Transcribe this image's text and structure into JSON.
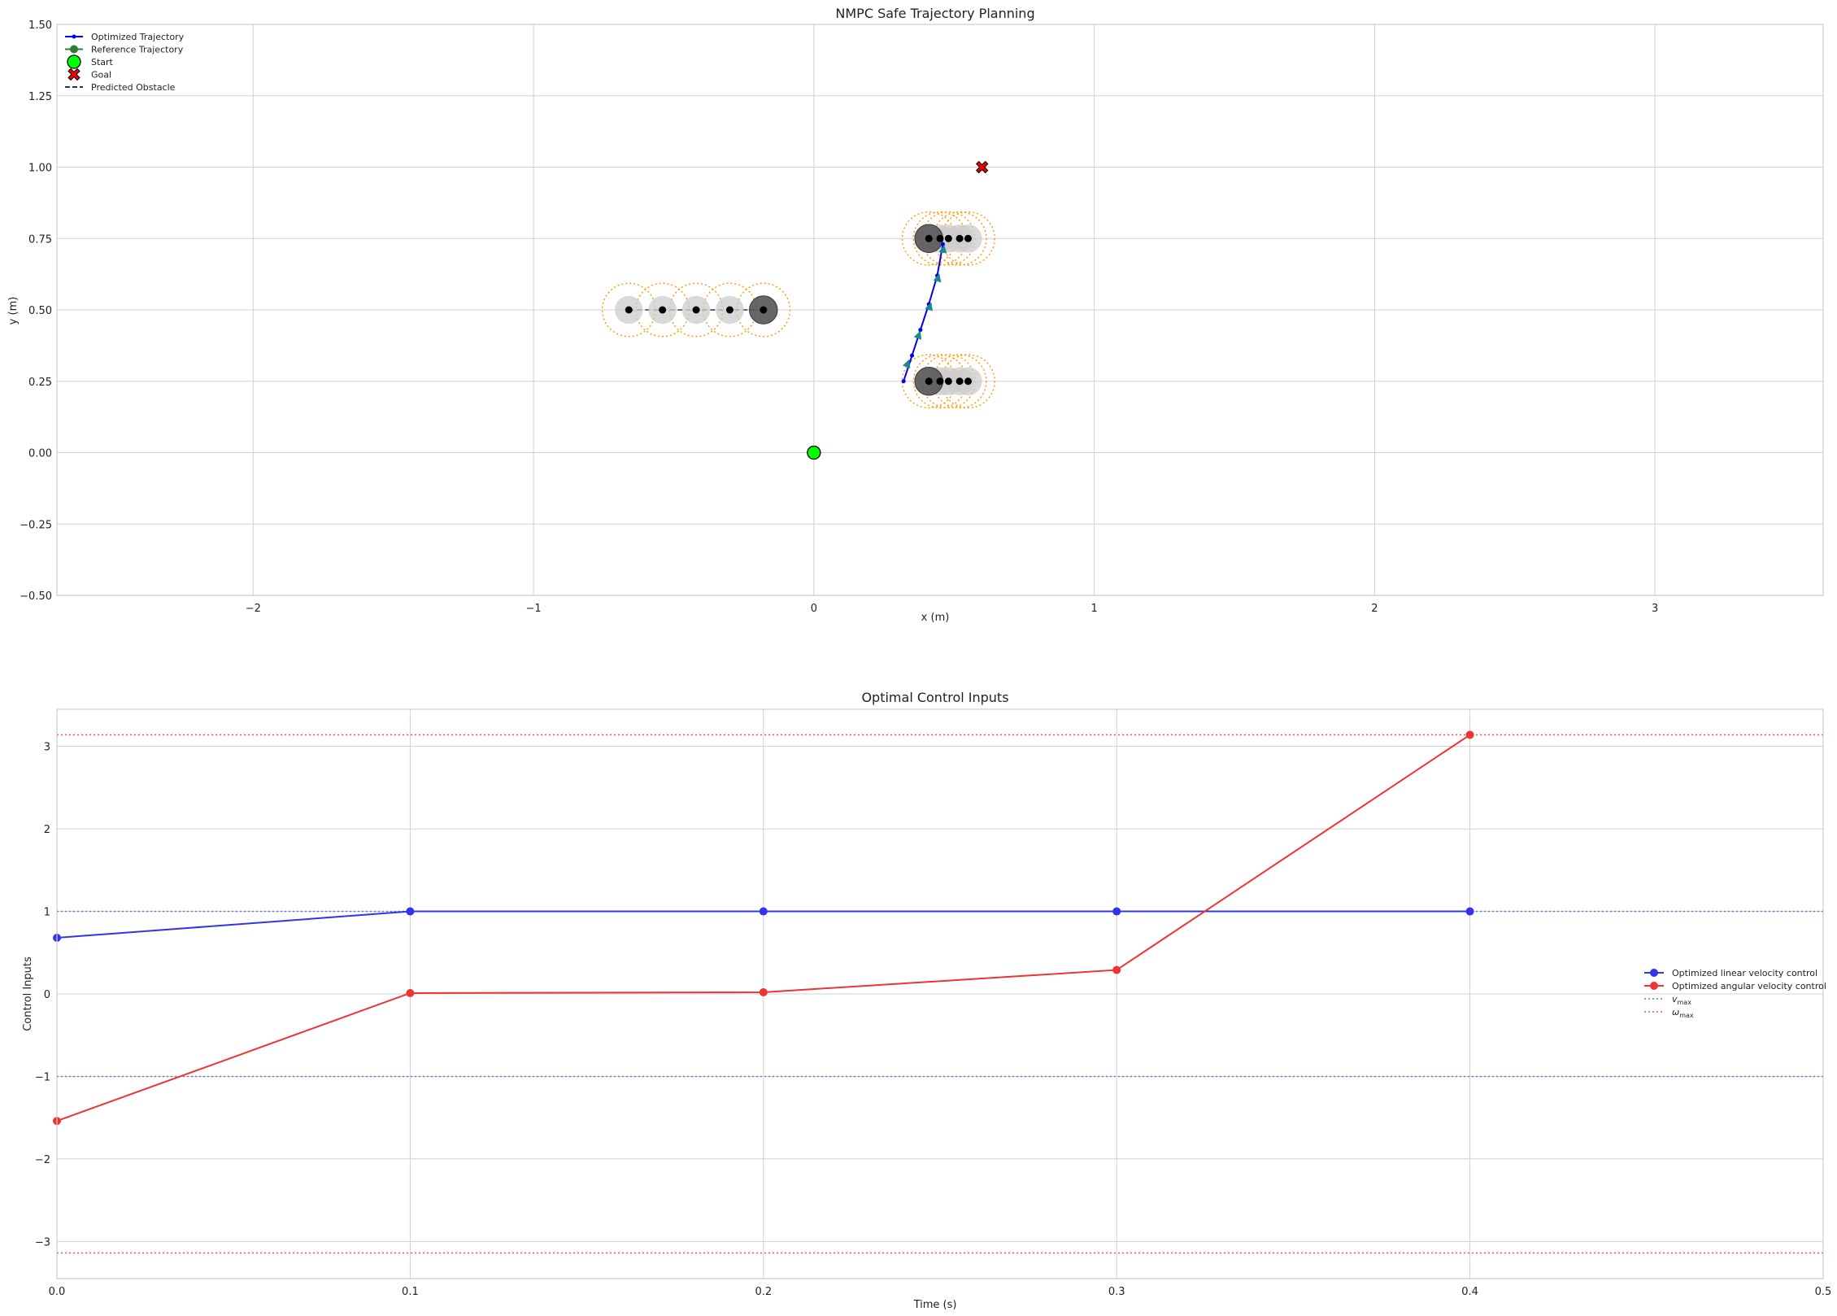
{
  "chart_data": [
    {
      "type": "scatter",
      "title": "NMPC Safe Trajectory Planning",
      "xlabel": "x (m)",
      "ylabel": "y (m)",
      "xlim": [
        -2.7,
        3.6
      ],
      "ylim": [
        -0.5,
        1.5
      ],
      "x_ticks": [
        -2,
        -1,
        0,
        1,
        2,
        3
      ],
      "x_tick_labels": [
        "−2",
        "−1",
        "0",
        "1",
        "2",
        "3"
      ],
      "y_ticks": [
        -0.5,
        -0.25,
        0,
        0.25,
        0.5,
        0.75,
        1.0,
        1.25,
        1.5
      ],
      "y_tick_labels": [
        "−0.50",
        "−0.25",
        "0.00",
        "0.25",
        "0.50",
        "0.75",
        "1.00",
        "1.25",
        "1.50"
      ],
      "grid": true,
      "legend_position": "top-left",
      "legend": [
        {
          "label": "Optimized Trajectory",
          "style": "line-dot",
          "color": "#0000ee"
        },
        {
          "label": "Reference Trajectory",
          "style": "line-circle",
          "color": "#2e7d32"
        },
        {
          "label": "Start",
          "style": "big-circle",
          "color": "#00ff00"
        },
        {
          "label": "Goal",
          "style": "x-marker",
          "color": "#ee0000"
        },
        {
          "label": "Predicted Obstacle",
          "style": "dashed",
          "color": "#333333"
        }
      ],
      "start": {
        "x": 0.0,
        "y": 0.0,
        "color": "#00ff00"
      },
      "goal": {
        "x": 0.6,
        "y": 1.0,
        "color": "#ee0000"
      },
      "optimized_trajectory": {
        "color": "#0000ee",
        "x": [
          0.32,
          0.35,
          0.38,
          0.41,
          0.44,
          0.46
        ],
        "y": [
          0.25,
          0.34,
          0.43,
          0.52,
          0.62,
          0.73
        ]
      },
      "heading_arrows": {
        "color": "#1a8a8a",
        "points": [
          {
            "x": 0.33,
            "y": 0.3,
            "angle_deg": 70
          },
          {
            "x": 0.37,
            "y": 0.4,
            "angle_deg": 70
          },
          {
            "x": 0.41,
            "y": 0.5,
            "angle_deg": 72
          },
          {
            "x": 0.44,
            "y": 0.6,
            "angle_deg": 75
          },
          {
            "x": 0.46,
            "y": 0.7,
            "angle_deg": 80
          }
        ]
      },
      "obstacles": [
        {
          "x": [
            -0.66,
            -0.54,
            -0.42,
            -0.3,
            -0.18
          ],
          "y": 0.5,
          "current_index": 4
        },
        {
          "x": [
            0.41,
            0.45,
            0.48,
            0.52,
            0.55
          ],
          "y": 0.75,
          "current_index": 0
        },
        {
          "x": [
            0.41,
            0.45,
            0.48,
            0.52,
            0.55
          ],
          "y": 0.25,
          "current_index": 0
        }
      ],
      "obstacle_radius": 0.05,
      "safety_radius": 0.095,
      "colors": {
        "obstacle_current": "#555555",
        "obstacle_predicted": "#cccccc",
        "safety_margin": "#ff9900",
        "center_dot": "#000000"
      }
    },
    {
      "type": "line",
      "title": "Optimal Control Inputs",
      "xlabel": "Time (s)",
      "ylabel": "Control Inputs",
      "xlim": [
        0,
        0.5
      ],
      "ylim": [
        -3.45,
        3.45
      ],
      "x_ticks": [
        0,
        0.1,
        0.2,
        0.3,
        0.4,
        0.5
      ],
      "x_tick_labels": [
        "0.0",
        "0.1",
        "0.2",
        "0.3",
        "0.4",
        "0.5"
      ],
      "y_ticks": [
        -3,
        -2,
        -1,
        0,
        1,
        2,
        3
      ],
      "y_tick_labels": [
        "−3",
        "−2",
        "−1",
        "0",
        "1",
        "2",
        "3"
      ],
      "grid": true,
      "legend_position": "right",
      "x": [
        0.0,
        0.1,
        0.2,
        0.3,
        0.4
      ],
      "series": [
        {
          "name": "Optimized linear velocity control",
          "color": "#3333ee",
          "values": [
            0.68,
            1.0,
            1.0,
            1.0,
            1.0
          ]
        },
        {
          "name": "Optimized angular velocity control",
          "color": "#ee3333",
          "values": [
            -1.54,
            0.01,
            0.02,
            0.29,
            3.14
          ]
        }
      ],
      "limits": [
        {
          "name": "v",
          "sub": "max",
          "color": "#6677cc",
          "values": [
            1.0,
            -1.0
          ]
        },
        {
          "name": "ω",
          "sub": "max",
          "color": "#ee5555",
          "values": [
            3.14,
            -3.14
          ]
        }
      ]
    }
  ]
}
